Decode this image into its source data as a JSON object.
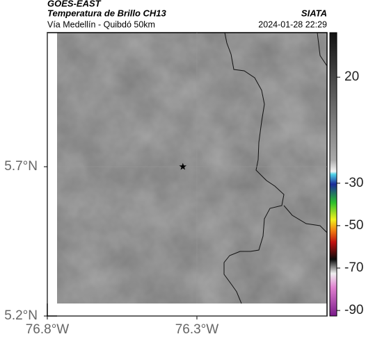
{
  "header": {
    "title": "GOES-EAST",
    "subtitle": "Temperatura de Brillo CH13",
    "region": "Vía Medellín - Quibdó 50km",
    "source": "SIATA",
    "datetime": "2024-01-28 22:29"
  },
  "map": {
    "xlim": [
      -76.8,
      -75.865
    ],
    "ylim": [
      5.2,
      6.149
    ],
    "xticks": [
      {
        "value": -76.8,
        "label": "76.8°W"
      },
      {
        "value": -76.3,
        "label": "76.3°W"
      }
    ],
    "yticks": [
      {
        "value": 5.2,
        "label": "5.2°N"
      },
      {
        "value": 5.7,
        "label": "5.7°N"
      }
    ],
    "marker": {
      "lon": -76.347,
      "lat": 5.7
    }
  },
  "colorbar": {
    "lim": [
      -92.6,
      41
    ],
    "ticks": [
      20,
      -30,
      -50,
      -70,
      -90
    ]
  }
}
